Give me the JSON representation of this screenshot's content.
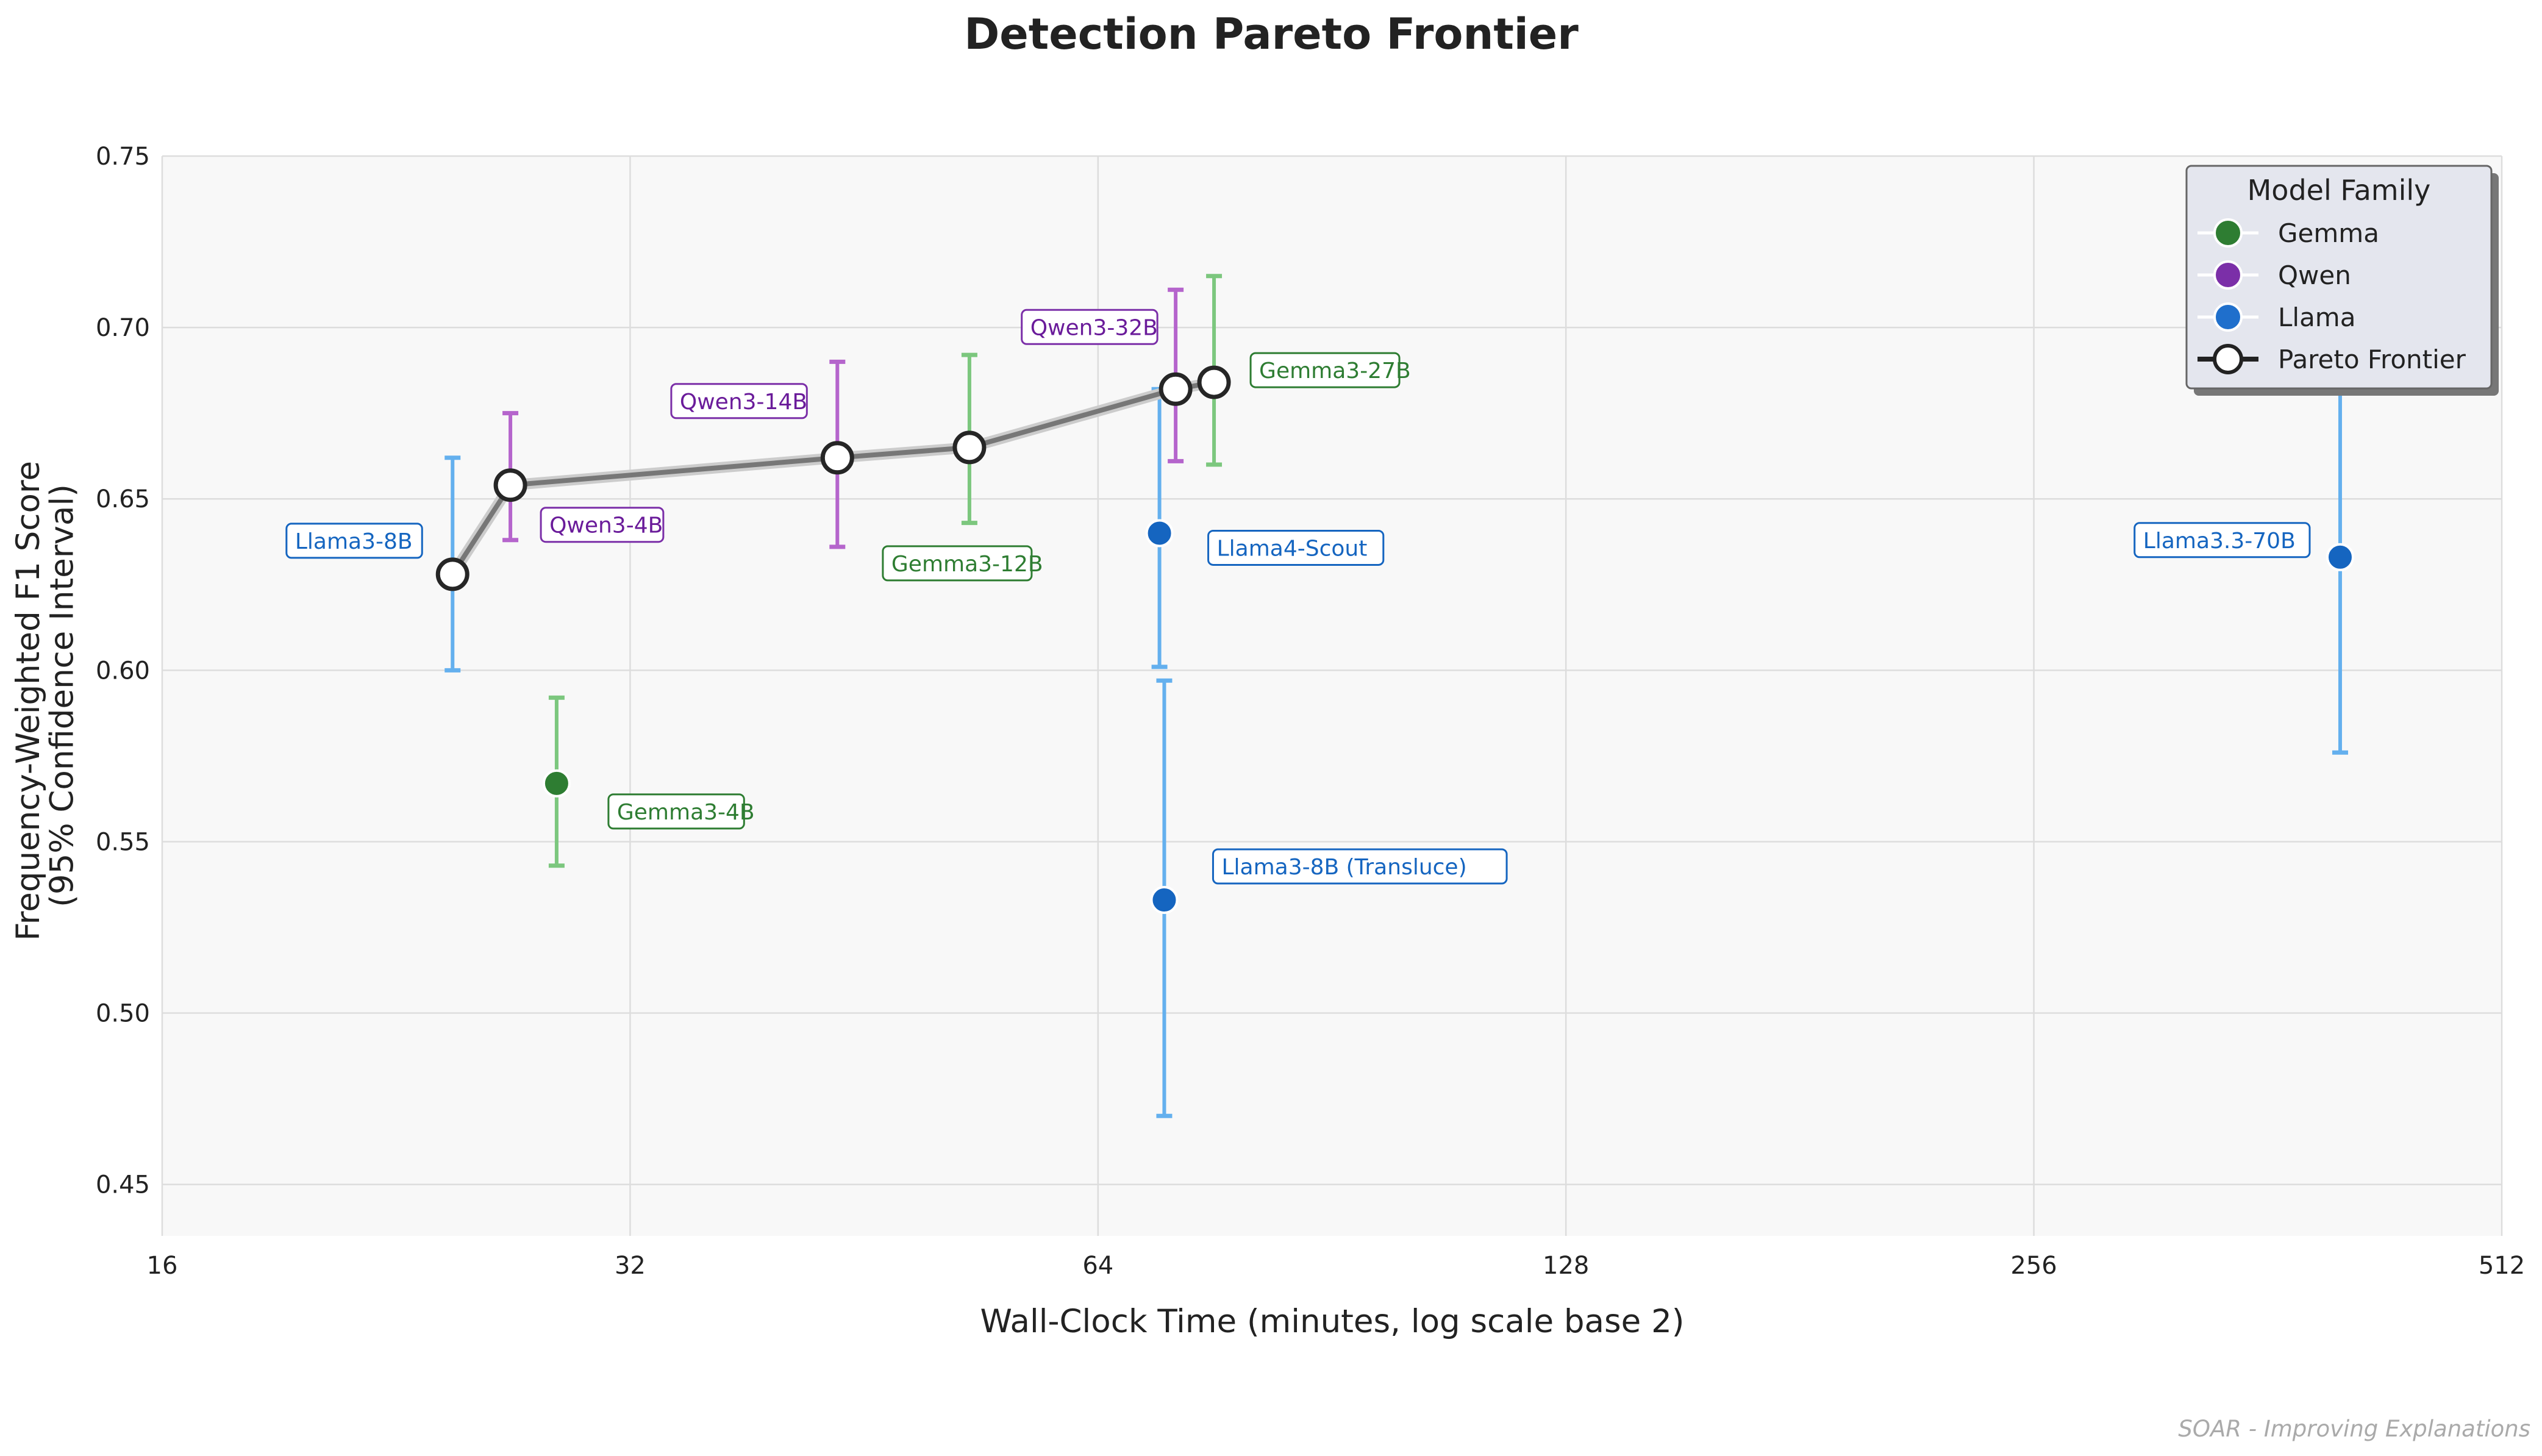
{
  "chart_data": {
    "type": "scatter",
    "title": "Detection Pareto Frontier",
    "xlabel": "Wall-Clock Time (minutes, log scale base 2)",
    "ylabel_lines": [
      "Frequency-Weighted F1 Score",
      "(95% Confidence Interval)"
    ],
    "x_scale": "log2",
    "xlim": [
      16,
      512
    ],
    "ylim": [
      0.435,
      0.75
    ],
    "x_ticks": [
      16,
      32,
      64,
      128,
      256,
      512
    ],
    "x_tick_labels": [
      "16",
      "32",
      "64",
      "128",
      "256",
      "512"
    ],
    "y_ticks": [
      0.45,
      0.5,
      0.55,
      0.6,
      0.65,
      0.7,
      0.75
    ],
    "y_tick_labels": [
      "0.45",
      "0.50",
      "0.55",
      "0.60",
      "0.65",
      "0.70",
      "0.75"
    ],
    "grid": true,
    "legend": {
      "title": "Model Family",
      "placement": "top-right",
      "entries": [
        {
          "label": "Gemma",
          "color": "#2e7d32",
          "kind": "marker"
        },
        {
          "label": "Qwen",
          "color": "#7b2fa8",
          "kind": "marker"
        },
        {
          "label": "Llama",
          "color": "#1f6fcc",
          "kind": "marker"
        },
        {
          "label": "Pareto Frontier",
          "color": "#222222",
          "kind": "frontier"
        }
      ]
    },
    "families": {
      "Gemma": {
        "point": "#2e7d32",
        "err": "#7cc77e",
        "box": "#2e7d32",
        "text": "#2e7d32"
      },
      "Qwen": {
        "point": "#7b2fa8",
        "err": "#b565cc",
        "box": "#7b2fa8",
        "text": "#6a1b9a"
      },
      "Llama": {
        "point": "#1565c0",
        "err": "#64b0ee",
        "box": "#1565c0",
        "text": "#1565c0"
      }
    },
    "points": [
      {
        "label": "Llama3-8B",
        "family": "Llama",
        "x": 24.6,
        "y": 0.628,
        "lo": 0.6,
        "hi": 0.662,
        "frontier": true,
        "label_side": "left"
      },
      {
        "label": "Qwen3-4B",
        "family": "Qwen",
        "x": 26.8,
        "y": 0.654,
        "lo": 0.638,
        "hi": 0.675,
        "frontier": true,
        "label_side": "right-below"
      },
      {
        "label": "Gemma3-4B",
        "family": "Gemma",
        "x": 28.7,
        "y": 0.567,
        "lo": 0.543,
        "hi": 0.592,
        "frontier": false,
        "label_side": "right-below"
      },
      {
        "label": "Qwen3-14B",
        "family": "Qwen",
        "x": 43.5,
        "y": 0.662,
        "lo": 0.636,
        "hi": 0.69,
        "frontier": true,
        "label_side": "left-above"
      },
      {
        "label": "Gemma3-12B",
        "family": "Gemma",
        "x": 52.9,
        "y": 0.665,
        "lo": 0.643,
        "hi": 0.692,
        "frontier": true,
        "label_side": "below"
      },
      {
        "label": "Llama4-Scout",
        "family": "Llama",
        "x": 70.1,
        "y": 0.64,
        "lo": 0.601,
        "hi": 0.682,
        "frontier": false,
        "label_side": "right-below"
      },
      {
        "label": "Llama3-8B (Transluce)",
        "family": "Llama",
        "x": 70.6,
        "y": 0.533,
        "lo": 0.47,
        "hi": 0.597,
        "frontier": false,
        "label_side": "right-above"
      },
      {
        "label": "Qwen3-32B",
        "family": "Qwen",
        "x": 71.8,
        "y": 0.682,
        "lo": 0.661,
        "hi": 0.711,
        "frontier": true,
        "label_side": "left-above"
      },
      {
        "label": "Gemma3-27B",
        "family": "Gemma",
        "x": 76.0,
        "y": 0.684,
        "lo": 0.66,
        "hi": 0.715,
        "frontier": true,
        "label_side": "right-above"
      },
      {
        "label": "Llama3.3-70B",
        "family": "Llama",
        "x": 403.0,
        "y": 0.633,
        "lo": 0.576,
        "hi": 0.681,
        "frontier": false,
        "label_side": "left-above"
      }
    ],
    "frontier_order": [
      "Llama3-8B",
      "Qwen3-4B",
      "Qwen3-14B",
      "Gemma3-12B",
      "Qwen3-32B",
      "Gemma3-27B"
    ],
    "footer": "SOAR - Improving Explanations"
  }
}
